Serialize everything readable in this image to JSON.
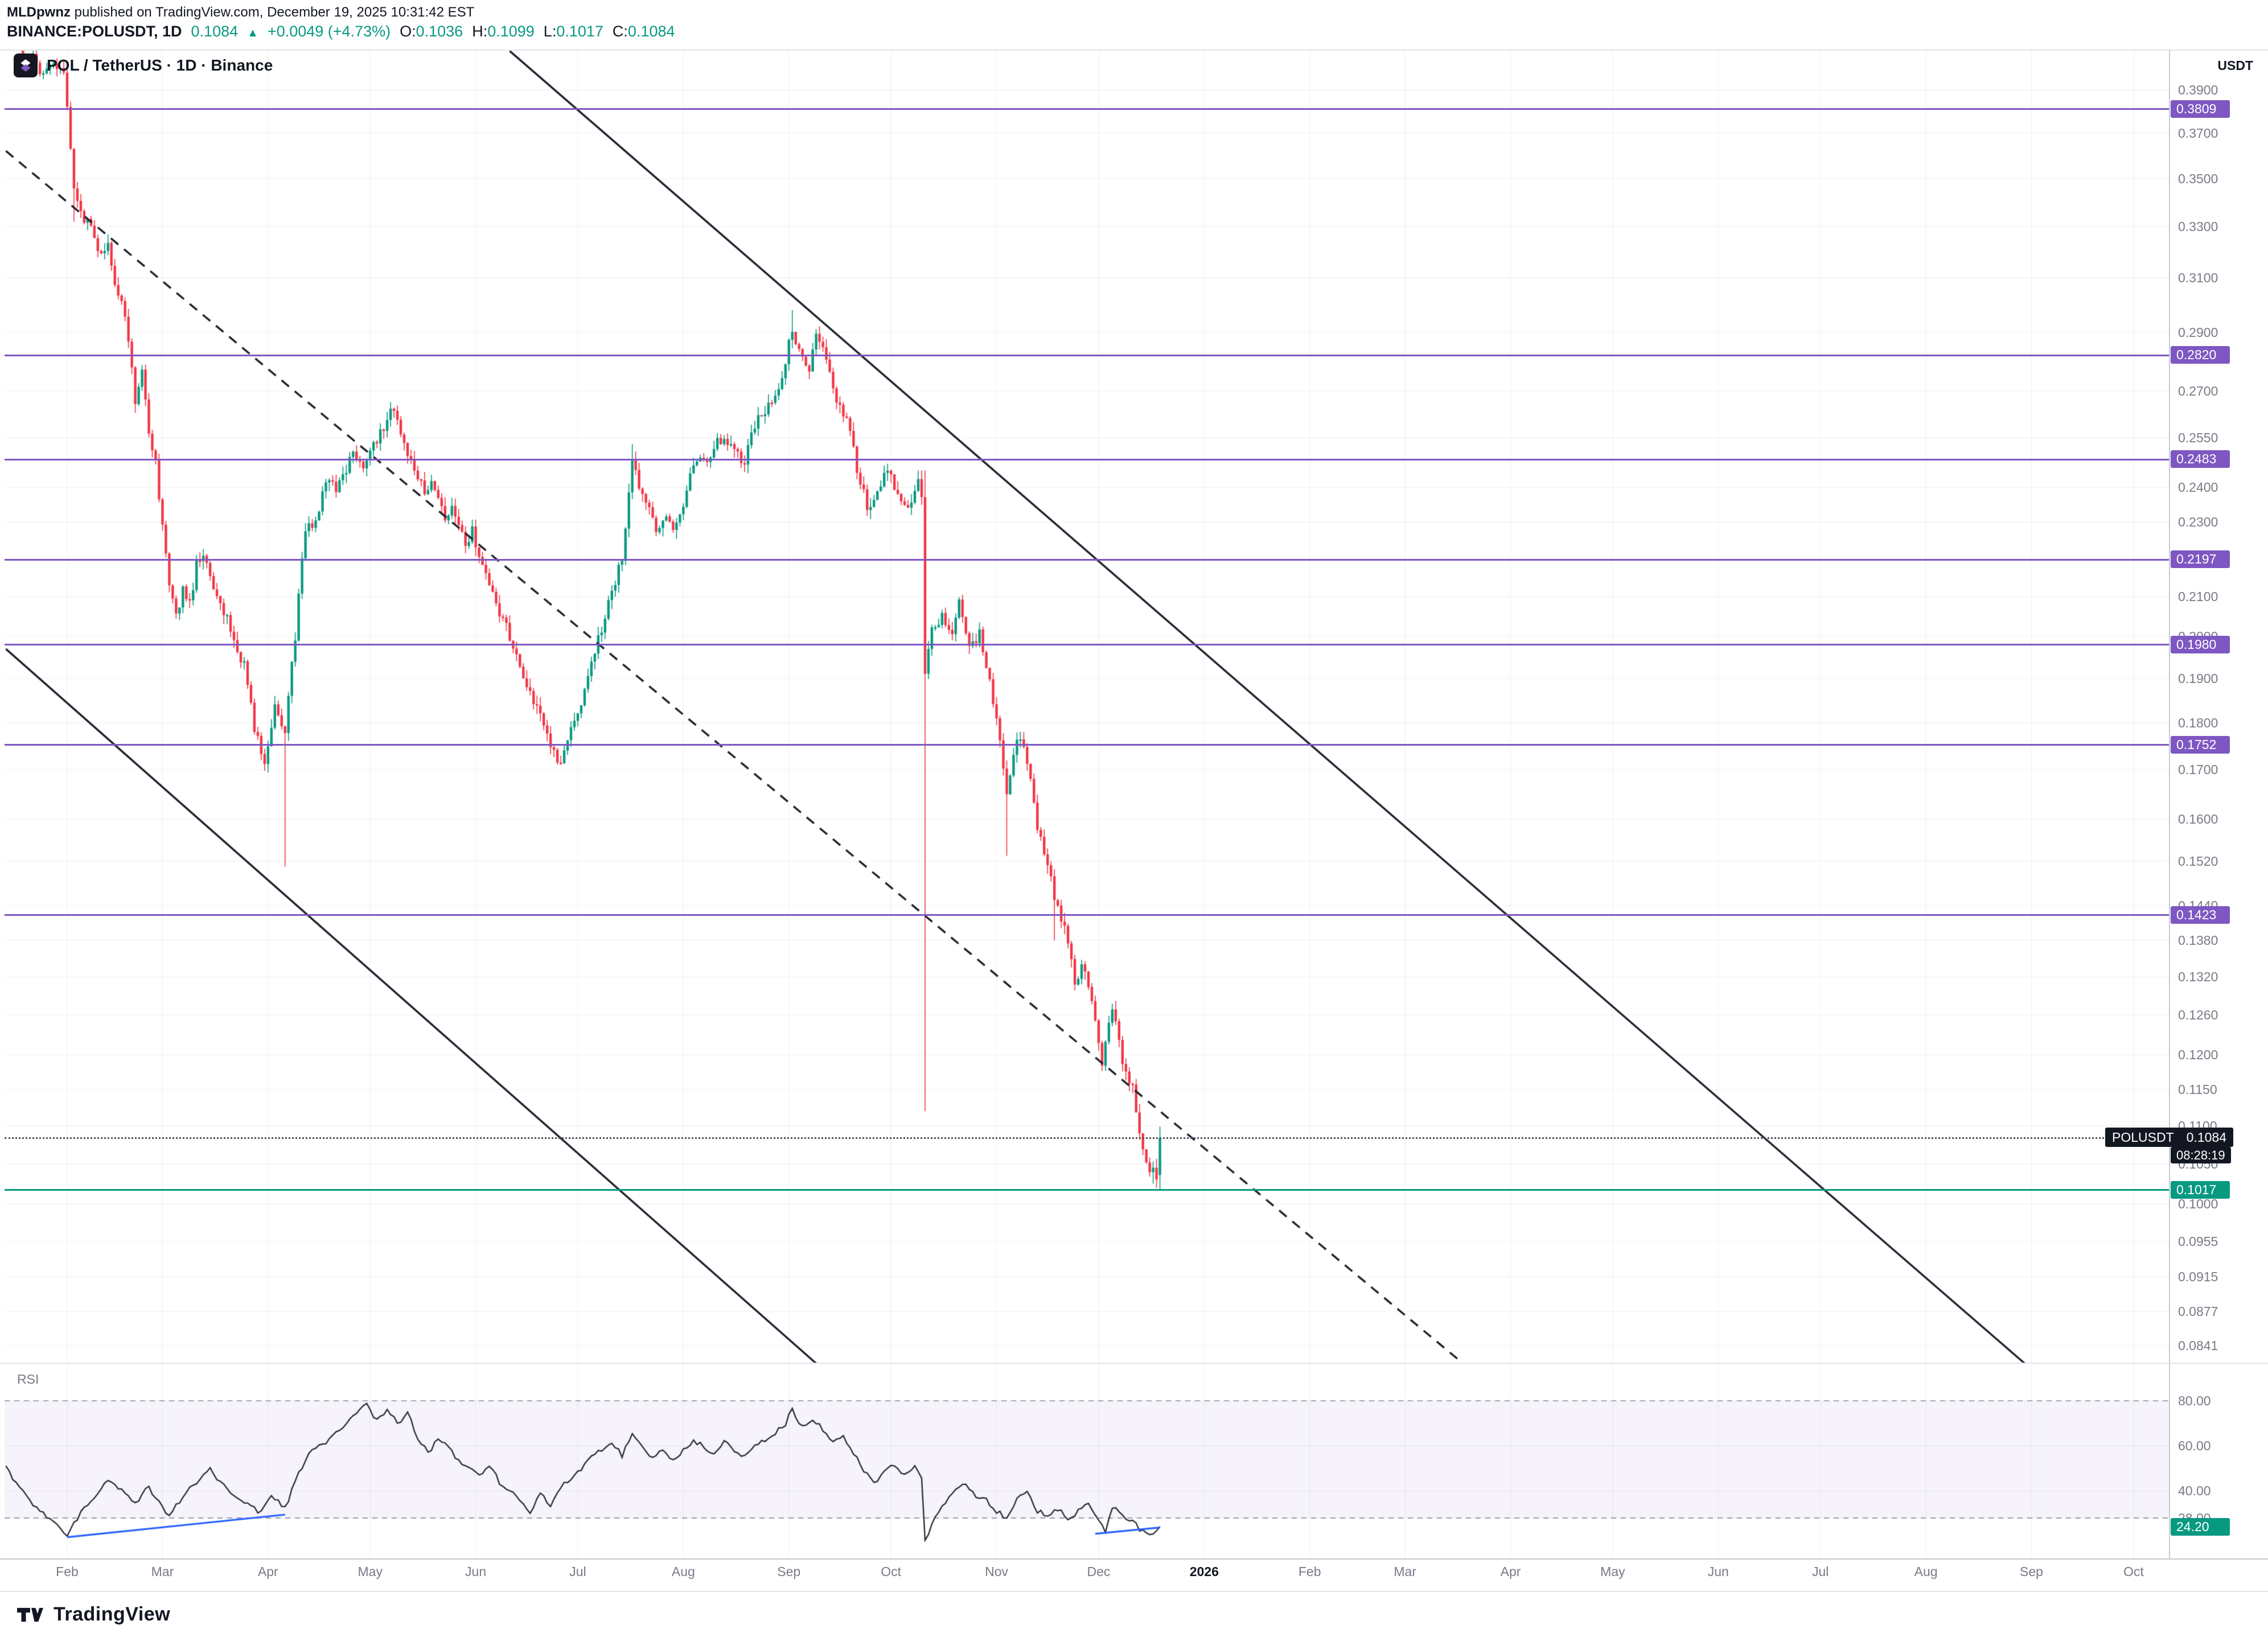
{
  "header": {
    "author": "MLDpwnz",
    "published": " published on TradingView.com, December 19, 2025 10:31:42 EST",
    "symbol": "BINANCE:POLUSDT, 1D",
    "last_price": "0.1084",
    "change_arrow": "▲",
    "change": "+0.0049 (+4.73%)",
    "ohlc": [
      {
        "label": "O:",
        "value": "0.1036"
      },
      {
        "label": "H:",
        "value": "0.1099"
      },
      {
        "label": "L:",
        "value": "0.1017"
      },
      {
        "label": "C:",
        "value": "0.1084"
      }
    ]
  },
  "legend": {
    "title": "POL / TetherUS · 1D · Binance"
  },
  "price_axis": {
    "unit": "USDT",
    "ticks": [
      "0.3900",
      "0.3700",
      "0.3500",
      "0.3300",
      "0.3100",
      "0.2900",
      "0.2700",
      "0.2550",
      "0.2400",
      "0.2300",
      "0.2100",
      "0.2000",
      "0.1900",
      "0.1800",
      "0.1700",
      "0.1600",
      "0.1520",
      "0.1440",
      "0.1380",
      "0.1320",
      "0.1260",
      "0.1200",
      "0.1150",
      "0.1100",
      "0.1050",
      "0.1000",
      "0.0955",
      "0.0915",
      "0.0877",
      "0.0841"
    ],
    "levels": [
      {
        "label": "0.3809",
        "price": 0.3809,
        "kind": "resistance"
      },
      {
        "label": "0.2820",
        "price": 0.282,
        "kind": "resistance"
      },
      {
        "label": "0.2483",
        "price": 0.2483,
        "kind": "resistance"
      },
      {
        "label": "0.2197",
        "price": 0.2197,
        "kind": "resistance"
      },
      {
        "label": "0.1980",
        "price": 0.198,
        "kind": "resistance"
      },
      {
        "label": "0.1752",
        "price": 0.1752,
        "kind": "resistance"
      },
      {
        "label": "0.1423",
        "price": 0.1423,
        "kind": "resistance"
      },
      {
        "label": "0.1017",
        "price": 0.1017,
        "kind": "support"
      }
    ],
    "last": {
      "symbol": "POLUSDT",
      "value": "0.1084",
      "price": 0.1084,
      "countdown": "08:28:19"
    }
  },
  "time_axis": {
    "months": [
      {
        "label": "Feb",
        "day": 0
      },
      {
        "label": "Mar",
        "day": 28
      },
      {
        "label": "Apr",
        "day": 59
      },
      {
        "label": "May",
        "day": 89
      },
      {
        "label": "Jun",
        "day": 120
      },
      {
        "label": "Jul",
        "day": 150
      },
      {
        "label": "Aug",
        "day": 181
      },
      {
        "label": "Sep",
        "day": 212
      },
      {
        "label": "Oct",
        "day": 242
      },
      {
        "label": "Nov",
        "day": 273
      },
      {
        "label": "Dec",
        "day": 303
      },
      {
        "label": "2026",
        "day": 334,
        "strong": true
      },
      {
        "label": "Feb",
        "day": 365
      },
      {
        "label": "Mar",
        "day": 393
      },
      {
        "label": "Apr",
        "day": 424
      },
      {
        "label": "May",
        "day": 454
      },
      {
        "label": "Jun",
        "day": 485
      },
      {
        "label": "Jul",
        "day": 515
      },
      {
        "label": "Aug",
        "day": 546
      },
      {
        "label": "Sep",
        "day": 577
      },
      {
        "label": "Oct",
        "day": 607
      }
    ]
  },
  "rsi": {
    "label": "RSI",
    "ticks": [
      {
        "label": "80.00",
        "value": 80
      },
      {
        "label": "60.00",
        "value": 60
      },
      {
        "label": "40.00",
        "value": 40
      },
      {
        "label": "28.00",
        "value": 28
      }
    ],
    "current": {
      "label": "24.20",
      "value": 24.2
    }
  },
  "footer": {
    "brand": "TradingView"
  },
  "colors": {
    "up": "#089981",
    "down": "#f23645",
    "purple": "#7e57c2",
    "green": "#089981",
    "blue": "#2962ff",
    "ink": "#131722",
    "muted": "#787b86"
  },
  "chart_data": {
    "type": "candlestick",
    "symbol": "BINANCE:POLUSDT",
    "exchange": "Binance",
    "interval": "1D",
    "price_scale": "log",
    "visible_price_range": [
      0.0823,
      0.41
    ],
    "day0_date": "2025-02-01",
    "today_ohlc": {
      "open": 0.1036,
      "high": 0.1099,
      "low": 0.1017,
      "close": 0.1084
    },
    "today_change": {
      "abs": 0.0049,
      "pct": 4.73
    },
    "horizontal_levels": [
      0.3809,
      0.282,
      0.2483,
      0.2197,
      0.198,
      0.1752,
      0.1423
    ],
    "support_level": 0.1017,
    "price_path_day_close": [
      [
        -15,
        0.425
      ],
      [
        -13,
        0.402
      ],
      [
        -10,
        0.408
      ],
      [
        -7,
        0.396
      ],
      [
        -4,
        0.402
      ],
      [
        -1,
        0.398
      ],
      [
        1,
        0.362
      ],
      [
        2,
        0.345
      ],
      [
        4,
        0.335
      ],
      [
        6,
        0.331
      ],
      [
        8,
        0.326
      ],
      [
        10,
        0.318
      ],
      [
        12,
        0.323
      ],
      [
        14,
        0.306
      ],
      [
        16,
        0.3
      ],
      [
        18,
        0.288
      ],
      [
        20,
        0.266
      ],
      [
        22,
        0.276
      ],
      [
        24,
        0.256
      ],
      [
        26,
        0.247
      ],
      [
        28,
        0.228
      ],
      [
        30,
        0.213
      ],
      [
        32,
        0.205
      ],
      [
        34,
        0.212
      ],
      [
        36,
        0.208
      ],
      [
        38,
        0.218
      ],
      [
        40,
        0.222
      ],
      [
        42,
        0.215
      ],
      [
        44,
        0.209
      ],
      [
        46,
        0.206
      ],
      [
        48,
        0.202
      ],
      [
        50,
        0.197
      ],
      [
        52,
        0.193
      ],
      [
        55,
        0.179
      ],
      [
        58,
        0.172
      ],
      [
        61,
        0.184
      ],
      [
        64,
        0.178
      ],
      [
        67,
        0.2
      ],
      [
        70,
        0.228
      ],
      [
        73,
        0.23
      ],
      [
        76,
        0.243
      ],
      [
        79,
        0.24
      ],
      [
        82,
        0.245
      ],
      [
        84,
        0.25
      ],
      [
        87,
        0.246
      ],
      [
        90,
        0.252
      ],
      [
        93,
        0.258
      ],
      [
        95,
        0.266
      ],
      [
        97,
        0.261
      ],
      [
        99,
        0.254
      ],
      [
        101,
        0.248
      ],
      [
        103,
        0.243
      ],
      [
        105,
        0.238
      ],
      [
        107,
        0.242
      ],
      [
        109,
        0.236
      ],
      [
        111,
        0.231
      ],
      [
        113,
        0.235
      ],
      [
        115,
        0.229
      ],
      [
        117,
        0.224
      ],
      [
        119,
        0.228
      ],
      [
        121,
        0.221
      ],
      [
        123,
        0.216
      ],
      [
        125,
        0.21
      ],
      [
        127,
        0.206
      ],
      [
        129,
        0.202
      ],
      [
        131,
        0.197
      ],
      [
        133,
        0.192
      ],
      [
        135,
        0.189
      ],
      [
        137,
        0.185
      ],
      [
        139,
        0.181
      ],
      [
        141,
        0.177
      ],
      [
        143,
        0.173
      ],
      [
        145,
        0.171
      ],
      [
        147,
        0.176
      ],
      [
        149,
        0.18
      ],
      [
        151,
        0.185
      ],
      [
        153,
        0.19
      ],
      [
        155,
        0.196
      ],
      [
        157,
        0.202
      ],
      [
        159,
        0.208
      ],
      [
        161,
        0.214
      ],
      [
        163,
        0.22
      ],
      [
        166,
        0.247
      ],
      [
        168,
        0.24
      ],
      [
        170,
        0.236
      ],
      [
        172,
        0.23
      ],
      [
        174,
        0.227
      ],
      [
        176,
        0.231
      ],
      [
        178,
        0.227
      ],
      [
        180,
        0.232
      ],
      [
        182,
        0.239
      ],
      [
        184,
        0.246
      ],
      [
        186,
        0.25
      ],
      [
        188,
        0.246
      ],
      [
        190,
        0.252
      ],
      [
        193,
        0.256
      ],
      [
        196,
        0.251
      ],
      [
        199,
        0.247
      ],
      [
        202,
        0.259
      ],
      [
        205,
        0.263
      ],
      [
        208,
        0.268
      ],
      [
        211,
        0.28
      ],
      [
        213,
        0.292
      ],
      [
        215,
        0.283
      ],
      [
        218,
        0.278
      ],
      [
        220,
        0.288
      ],
      [
        223,
        0.281
      ],
      [
        226,
        0.267
      ],
      [
        229,
        0.261
      ],
      [
        232,
        0.246
      ],
      [
        235,
        0.234
      ],
      [
        238,
        0.238
      ],
      [
        241,
        0.246
      ],
      [
        244,
        0.238
      ],
      [
        247,
        0.234
      ],
      [
        250,
        0.241
      ],
      [
        251,
        0.236
      ],
      [
        252,
        0.192
      ],
      [
        254,
        0.201
      ],
      [
        257,
        0.205
      ],
      [
        260,
        0.2
      ],
      [
        262,
        0.209
      ],
      [
        265,
        0.197
      ],
      [
        268,
        0.201
      ],
      [
        271,
        0.189
      ],
      [
        274,
        0.176
      ],
      [
        276,
        0.166
      ],
      [
        279,
        0.177
      ],
      [
        282,
        0.172
      ],
      [
        285,
        0.159
      ],
      [
        288,
        0.152
      ],
      [
        290,
        0.145
      ],
      [
        293,
        0.14
      ],
      [
        296,
        0.131
      ],
      [
        298,
        0.134
      ],
      [
        301,
        0.128
      ],
      [
        304,
        0.119
      ],
      [
        307,
        0.127
      ],
      [
        310,
        0.119
      ],
      [
        313,
        0.115
      ],
      [
        316,
        0.107
      ],
      [
        318,
        0.104
      ],
      [
        320,
        0.1036
      ],
      [
        321,
        0.1084
      ]
    ],
    "wick_events": {
      "2": {
        "low": 0.332
      },
      "64": {
        "low": 0.151
      },
      "166": {
        "high": 0.253
      },
      "213": {
        "high": 0.298
      },
      "252": {
        "high": 0.245,
        "low": 0.112
      },
      "276": {
        "low": 0.153
      },
      "290": {
        "low": 0.138
      },
      "319": {
        "low": 0.1025
      }
    },
    "trendlines": [
      {
        "name": "channel-upper",
        "style": "solid",
        "points": [
          [
            130,
            0.409
          ],
          [
            575,
            0.0823
          ]
        ]
      },
      {
        "name": "channel-lower",
        "style": "solid",
        "points": [
          [
            -18,
            0.197
          ],
          [
            220,
            0.0823
          ]
        ]
      },
      {
        "name": "channel-mid",
        "style": "dashed",
        "points": [
          [
            -18,
            0.362
          ],
          [
            410,
            0.0823
          ]
        ]
      }
    ],
    "rsi": {
      "current": 24.2,
      "bands": [
        80,
        28
      ],
      "path_day_value": [
        [
          -18,
          50
        ],
        [
          -14,
          42
        ],
        [
          -10,
          34
        ],
        [
          -5,
          27
        ],
        [
          0,
          20
        ],
        [
          4,
          30
        ],
        [
          8,
          38
        ],
        [
          12,
          45
        ],
        [
          16,
          40
        ],
        [
          20,
          34
        ],
        [
          24,
          42
        ],
        [
          28,
          32
        ],
        [
          30,
          28
        ],
        [
          34,
          38
        ],
        [
          38,
          43
        ],
        [
          42,
          50
        ],
        [
          46,
          42
        ],
        [
          50,
          38
        ],
        [
          54,
          33
        ],
        [
          57,
          30
        ],
        [
          60,
          39
        ],
        [
          64,
          32
        ],
        [
          68,
          48
        ],
        [
          72,
          58
        ],
        [
          76,
          62
        ],
        [
          80,
          67
        ],
        [
          84,
          73
        ],
        [
          88,
          78
        ],
        [
          91,
          71
        ],
        [
          94,
          76
        ],
        [
          97,
          70
        ],
        [
          100,
          74
        ],
        [
          103,
          64
        ],
        [
          106,
          57
        ],
        [
          109,
          63
        ],
        [
          112,
          59
        ],
        [
          115,
          54
        ],
        [
          118,
          50
        ],
        [
          121,
          46
        ],
        [
          124,
          51
        ],
        [
          127,
          44
        ],
        [
          130,
          40
        ],
        [
          133,
          36
        ],
        [
          136,
          31
        ],
        [
          139,
          38
        ],
        [
          142,
          34
        ],
        [
          145,
          42
        ],
        [
          148,
          45
        ],
        [
          151,
          49
        ],
        [
          154,
          56
        ],
        [
          157,
          58
        ],
        [
          160,
          62
        ],
        [
          163,
          56
        ],
        [
          166,
          66
        ],
        [
          169,
          59
        ],
        [
          172,
          55
        ],
        [
          175,
          59
        ],
        [
          178,
          53
        ],
        [
          181,
          58
        ],
        [
          184,
          63
        ],
        [
          187,
          59
        ],
        [
          190,
          57
        ],
        [
          193,
          62
        ],
        [
          196,
          58
        ],
        [
          199,
          55
        ],
        [
          202,
          60
        ],
        [
          205,
          63
        ],
        [
          208,
          66
        ],
        [
          211,
          70
        ],
        [
          213,
          76
        ],
        [
          216,
          68
        ],
        [
          219,
          72
        ],
        [
          222,
          67
        ],
        [
          225,
          62
        ],
        [
          228,
          65
        ],
        [
          231,
          57
        ],
        [
          234,
          49
        ],
        [
          237,
          44
        ],
        [
          240,
          48
        ],
        [
          243,
          52
        ],
        [
          246,
          47
        ],
        [
          249,
          50
        ],
        [
          251,
          45
        ],
        [
          252,
          18
        ],
        [
          255,
          28
        ],
        [
          258,
          35
        ],
        [
          261,
          41
        ],
        [
          264,
          43
        ],
        [
          267,
          38
        ],
        [
          270,
          36
        ],
        [
          273,
          31
        ],
        [
          276,
          28
        ],
        [
          279,
          37
        ],
        [
          282,
          39
        ],
        [
          285,
          31
        ],
        [
          288,
          29
        ],
        [
          291,
          32
        ],
        [
          294,
          28
        ],
        [
          297,
          31
        ],
        [
          300,
          34
        ],
        [
          303,
          26
        ],
        [
          305,
          22
        ],
        [
          307,
          33
        ],
        [
          310,
          29
        ],
        [
          313,
          26
        ],
        [
          316,
          22
        ],
        [
          318,
          20
        ],
        [
          320,
          23
        ],
        [
          321,
          24.2
        ]
      ],
      "trendlines": [
        [
          [
            0,
            19.5
          ],
          [
            64,
            29.5
          ]
        ],
        [
          [
            302,
            21.0
          ],
          [
            321,
            23.8
          ]
        ]
      ]
    }
  }
}
